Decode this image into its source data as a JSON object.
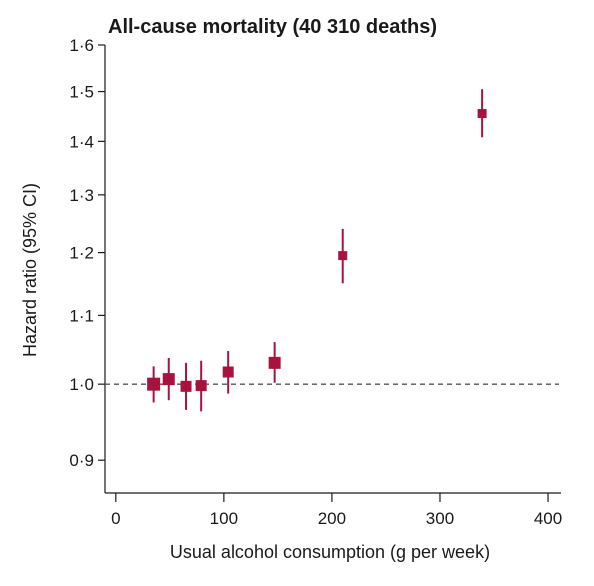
{
  "chart_data": {
    "type": "scatter",
    "title": "All-cause mortality (40 310 deaths)",
    "xlabel": "Usual alcohol consumption (g per week)",
    "ylabel": "Hazard ratio (95% CI)",
    "y_scale": "log",
    "xlim": [
      -10,
      412
    ],
    "ylim": [
      0.86,
      1.6
    ],
    "x_ticks": [
      0,
      100,
      200,
      300,
      400
    ],
    "x_tick_labels": [
      "0",
      "100",
      "200",
      "300",
      "400"
    ],
    "y_ticks": [
      0.9,
      1.0,
      1.1,
      1.2,
      1.3,
      1.4,
      1.5,
      1.6
    ],
    "y_tick_labels": [
      "0·9",
      "1·0",
      "1·1",
      "1·2",
      "1·3",
      "1·4",
      "1·5",
      "1·6"
    ],
    "reference_line": 1.0,
    "grid": false,
    "color": "#a8123e",
    "points": [
      {
        "x": 35,
        "y": 1.0,
        "lo": 0.975,
        "hi": 1.025
      },
      {
        "x": 49,
        "y": 1.007,
        "lo": 0.978,
        "hi": 1.037
      },
      {
        "x": 65,
        "y": 0.997,
        "lo": 0.965,
        "hi": 1.03
      },
      {
        "x": 79,
        "y": 0.998,
        "lo": 0.963,
        "hi": 1.033
      },
      {
        "x": 104,
        "y": 1.017,
        "lo": 0.987,
        "hi": 1.047
      },
      {
        "x": 147,
        "y": 1.03,
        "lo": 1.002,
        "hi": 1.06
      },
      {
        "x": 210,
        "y": 1.195,
        "lo": 1.15,
        "hi": 1.24
      },
      {
        "x": 339,
        "y": 1.455,
        "lo": 1.408,
        "hi": 1.505
      }
    ]
  }
}
